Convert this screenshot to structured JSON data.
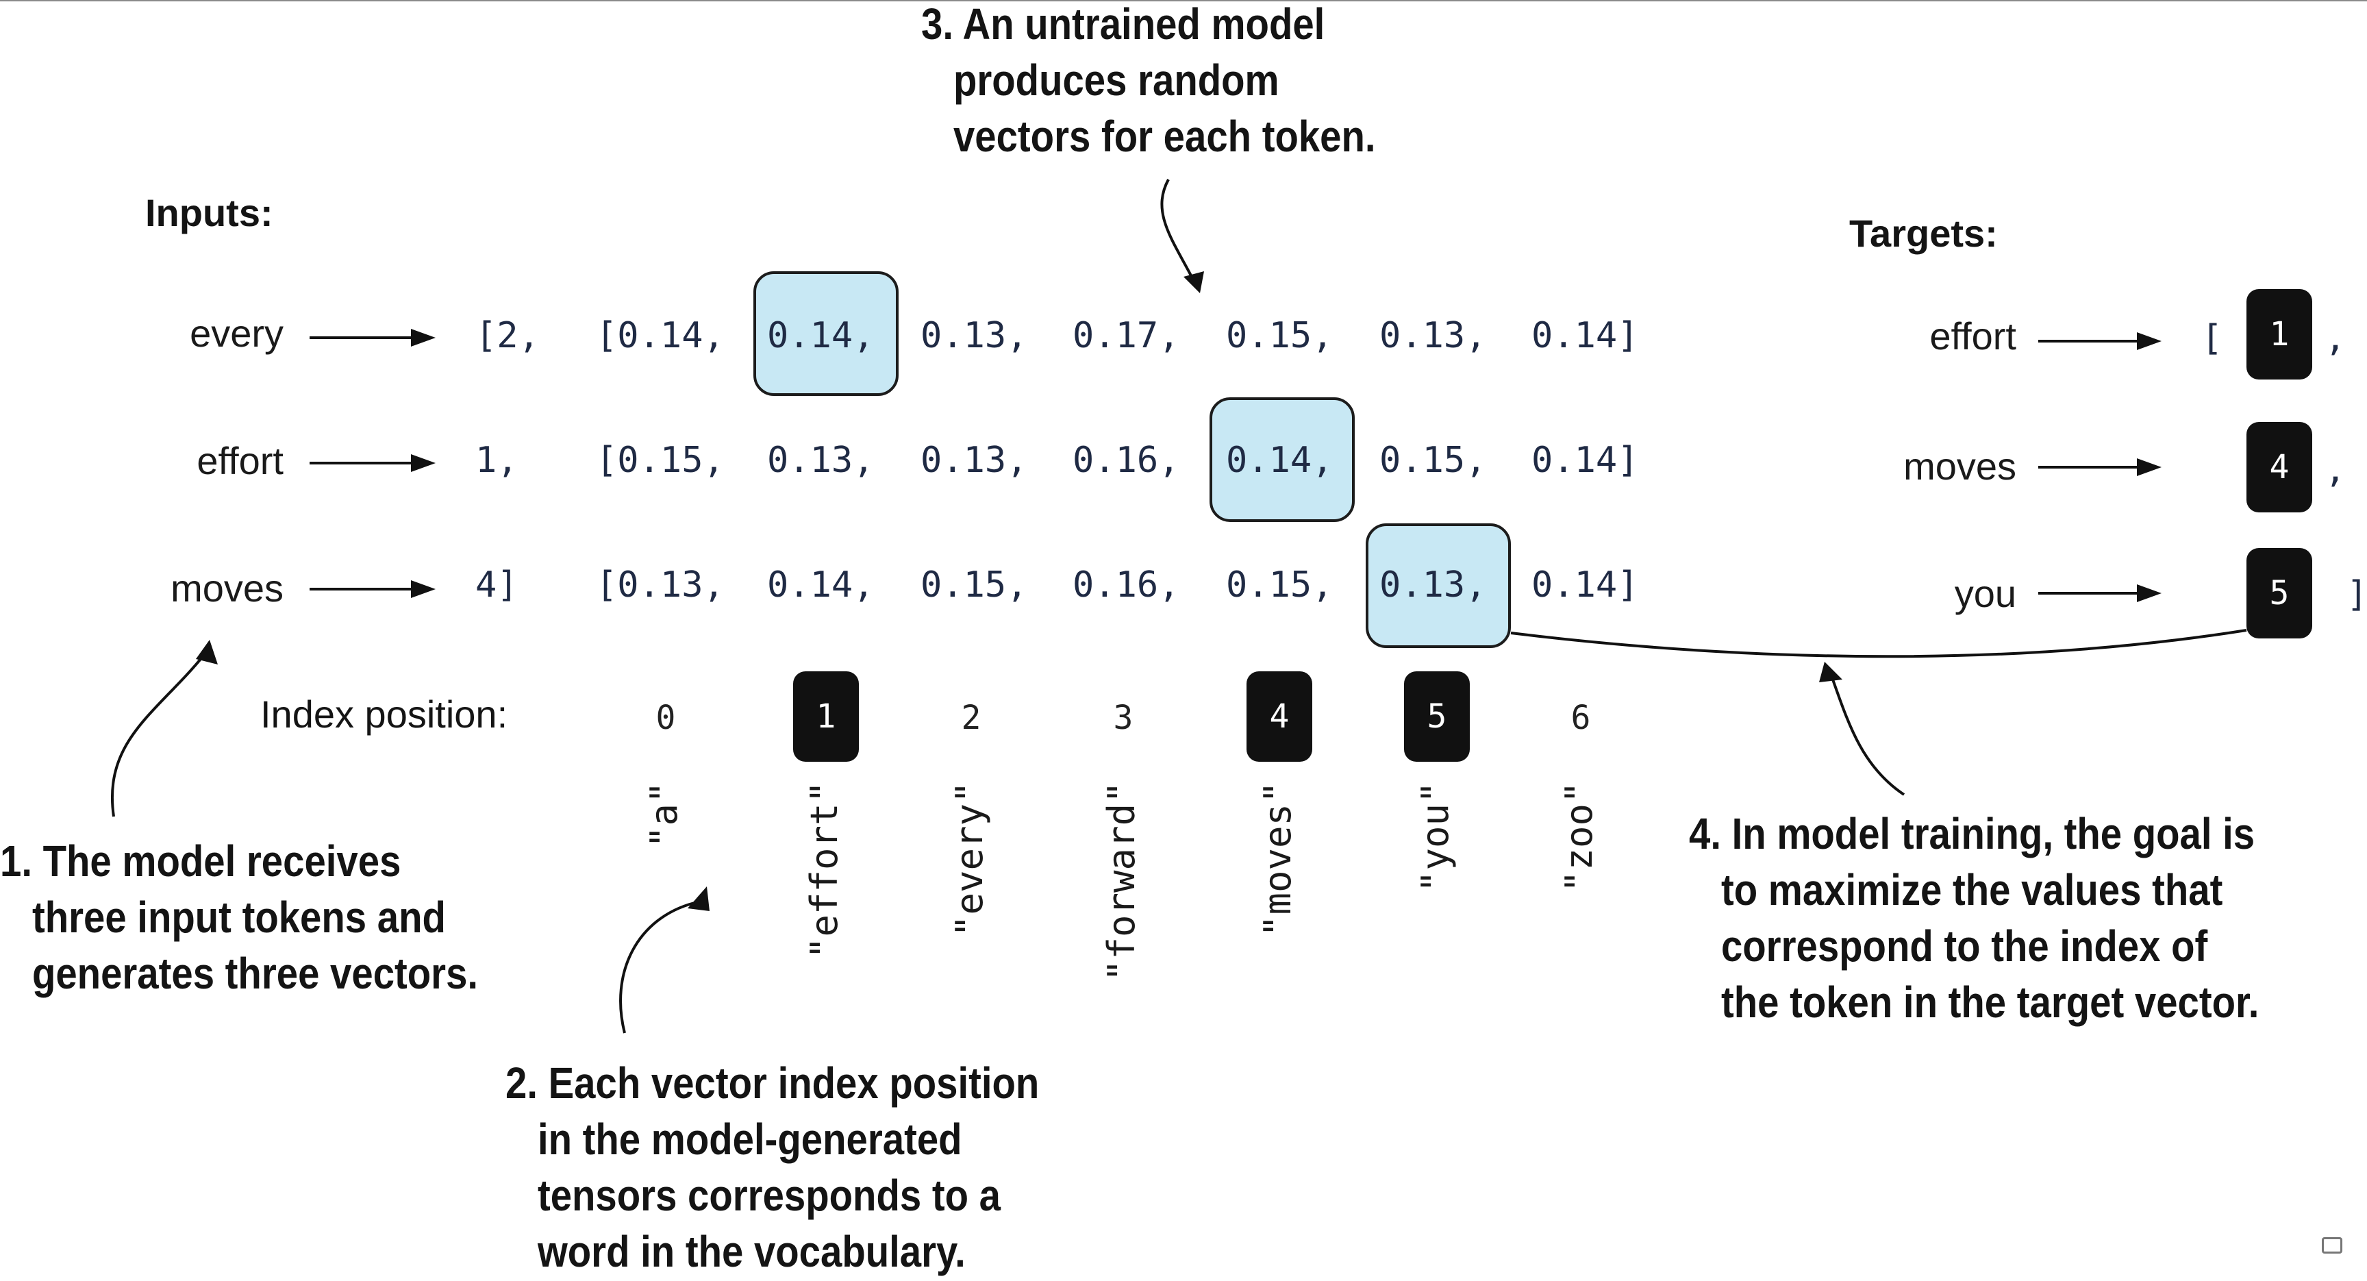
{
  "annotations": {
    "a1": "1. The model receives\n   three input tokens and\n   generates three vectors.",
    "a2": "2. Each vector index position\n   in the model-generated\n   tensors corresponds to a\n   word in the vocabulary.",
    "a3": "3. An untrained model\n   produces random\n   vectors for each token.",
    "a4": "4. In model training, the goal is\n   to maximize the values that\n   correspond to the index of\n   the token in the target vector."
  },
  "labels": {
    "inputs": "Inputs:",
    "targets": "Targets:",
    "index_position": "Index position:"
  },
  "inputs": [
    {
      "word": "every",
      "id": "[2,"
    },
    {
      "word": "effort",
      "id": "1,"
    },
    {
      "word": "moves",
      "id": "4]"
    }
  ],
  "vectors": [
    {
      "values": [
        "[0.14,",
        "0.14,",
        "0.13,",
        "0.17,",
        "0.15,",
        "0.13,",
        "0.14]"
      ],
      "highlight_index": 1
    },
    {
      "values": [
        "[0.15,",
        "0.13,",
        "0.13,",
        "0.16,",
        "0.14,",
        "0.15,",
        "0.14]"
      ],
      "highlight_index": 4
    },
    {
      "values": [
        "[0.13,",
        "0.14,",
        "0.15,",
        "0.16,",
        "0.15,",
        "0.13,",
        "0.14]"
      ],
      "highlight_index": 5
    }
  ],
  "targets": [
    {
      "word": "effort",
      "id": "1",
      "open": "[",
      "close": ","
    },
    {
      "word": "moves",
      "id": "4",
      "open": "",
      "close": ","
    },
    {
      "word": "you",
      "id": "5",
      "open": "",
      "close": "]"
    }
  ],
  "index_positions": [
    "0",
    "1",
    "2",
    "3",
    "4",
    "5",
    "6"
  ],
  "highlighted_positions": [
    1,
    4,
    5
  ],
  "vocabulary": [
    "\"a\"",
    "\"effort\"",
    "\"every\"",
    "\"forward\"",
    "\"moves\"",
    "\"you\"",
    "\"zoo\""
  ],
  "colors": {
    "highlight": "#c8e8f4",
    "block": "#111111"
  }
}
